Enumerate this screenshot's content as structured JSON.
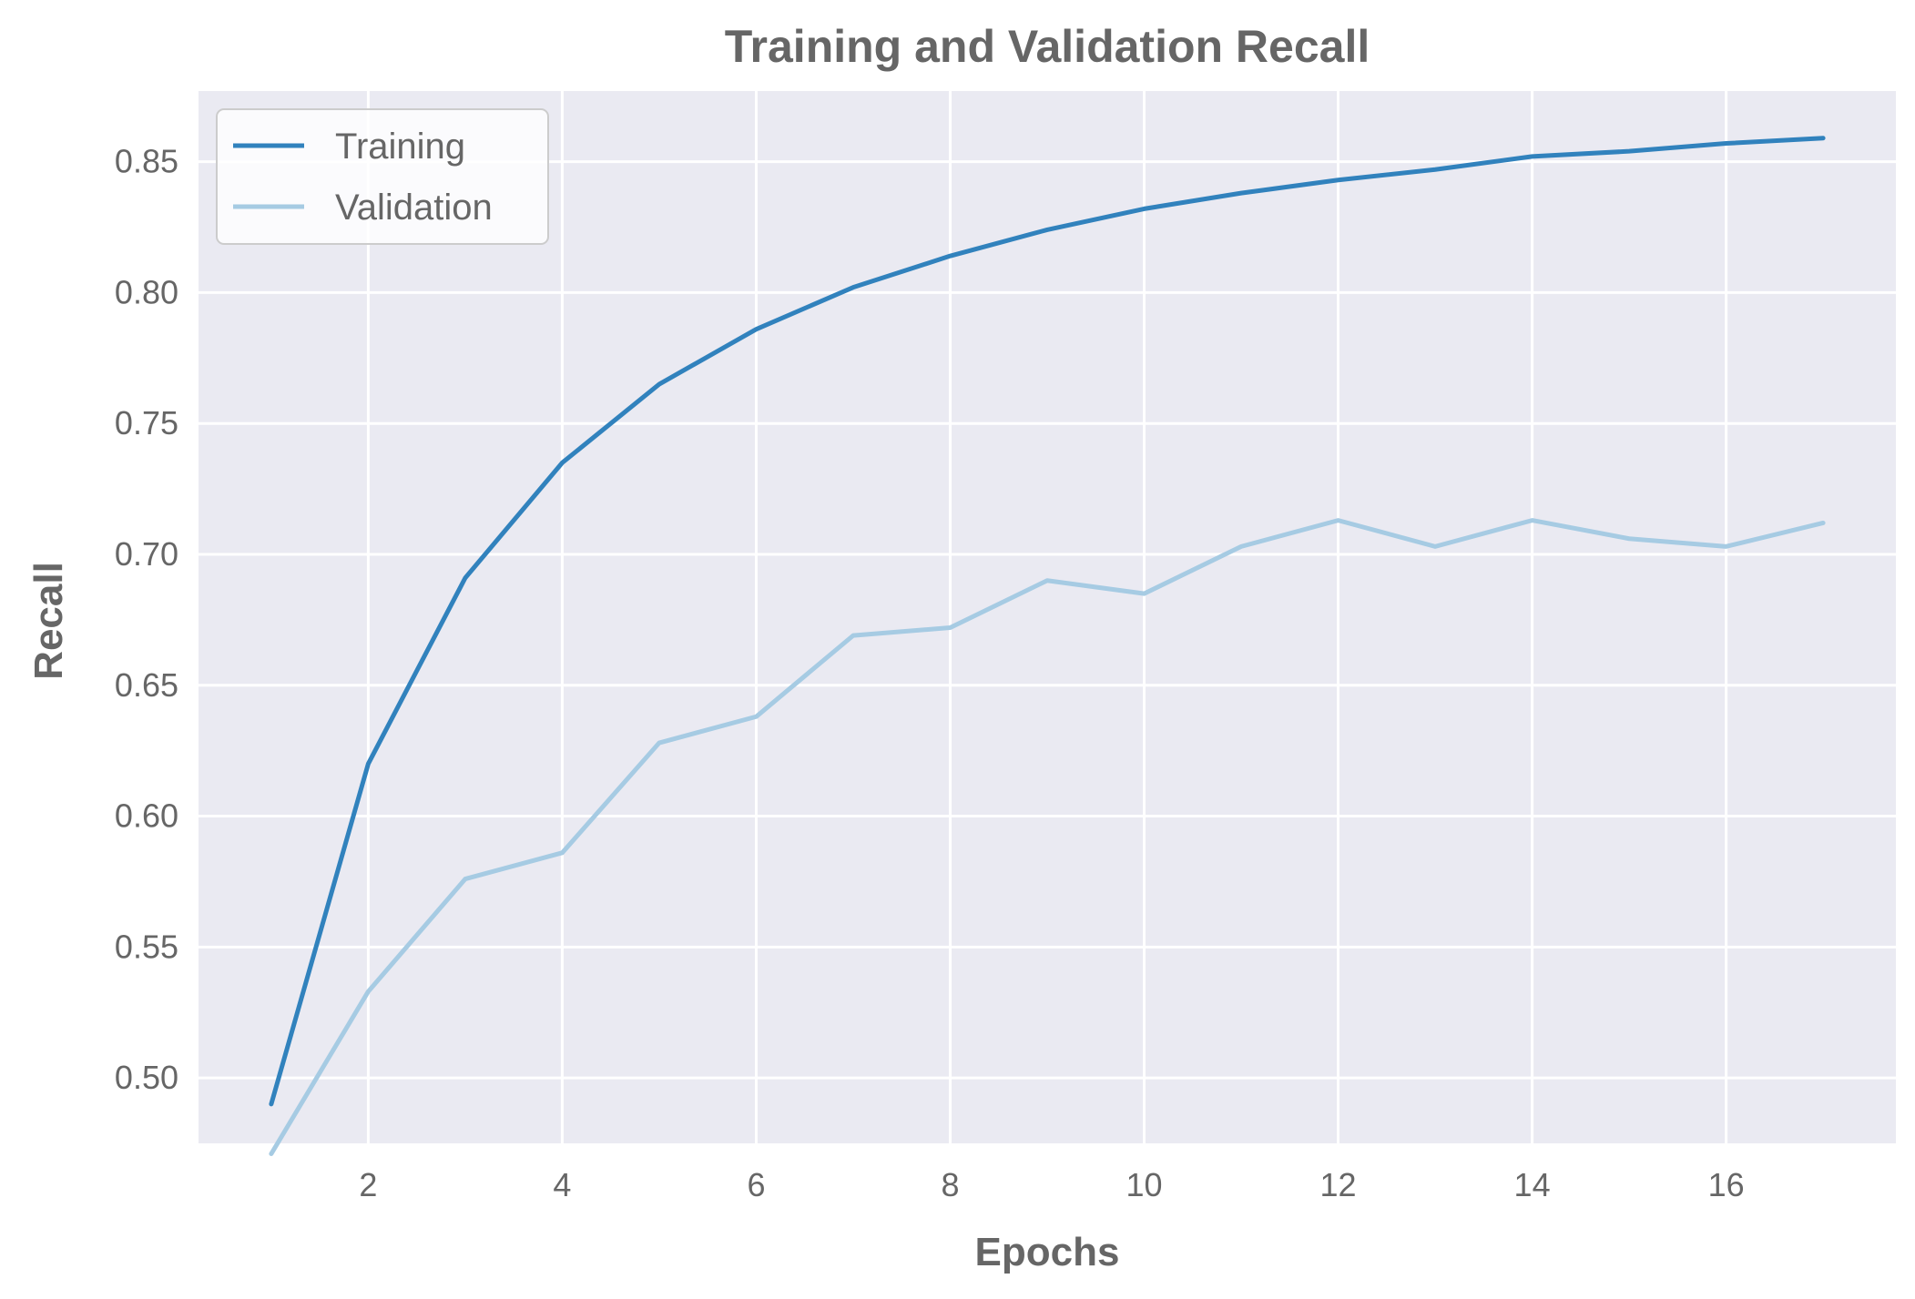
{
  "chart_data": {
    "type": "line",
    "title": "Training and Validation Recall",
    "xlabel": "Epochs",
    "ylabel": "Recall",
    "xlim": [
      0.25,
      17.75
    ],
    "ylim": [
      0.475,
      0.877
    ],
    "xticks": [
      2,
      4,
      6,
      8,
      10,
      12,
      14,
      16
    ],
    "yticks": [
      0.5,
      0.55,
      0.6,
      0.65,
      0.7,
      0.75,
      0.8,
      0.85
    ],
    "ytick_labels": [
      "0.50",
      "0.55",
      "0.60",
      "0.65",
      "0.70",
      "0.75",
      "0.80",
      "0.85"
    ],
    "grid": true,
    "legend_position": "top-left",
    "x": [
      1,
      2,
      3,
      4,
      5,
      6,
      7,
      8,
      9,
      10,
      11,
      12,
      13,
      14,
      15,
      16,
      17
    ],
    "series": [
      {
        "name": "Training",
        "color": "#3182bd",
        "values": [
          0.49,
          0.62,
          0.691,
          0.735,
          0.765,
          0.786,
          0.802,
          0.814,
          0.824,
          0.832,
          0.838,
          0.843,
          0.847,
          0.852,
          0.854,
          0.857,
          0.859
        ]
      },
      {
        "name": "Validation",
        "color": "#a6cbe3",
        "values": [
          0.471,
          0.533,
          0.576,
          0.586,
          0.628,
          0.638,
          0.669,
          0.672,
          0.69,
          0.685,
          0.703,
          0.713,
          0.703,
          0.713,
          0.706,
          0.703,
          0.712
        ]
      }
    ],
    "colors": {
      "plot_background": "#eaeaf2",
      "grid": "#ffffff",
      "text": "#666666"
    }
  }
}
